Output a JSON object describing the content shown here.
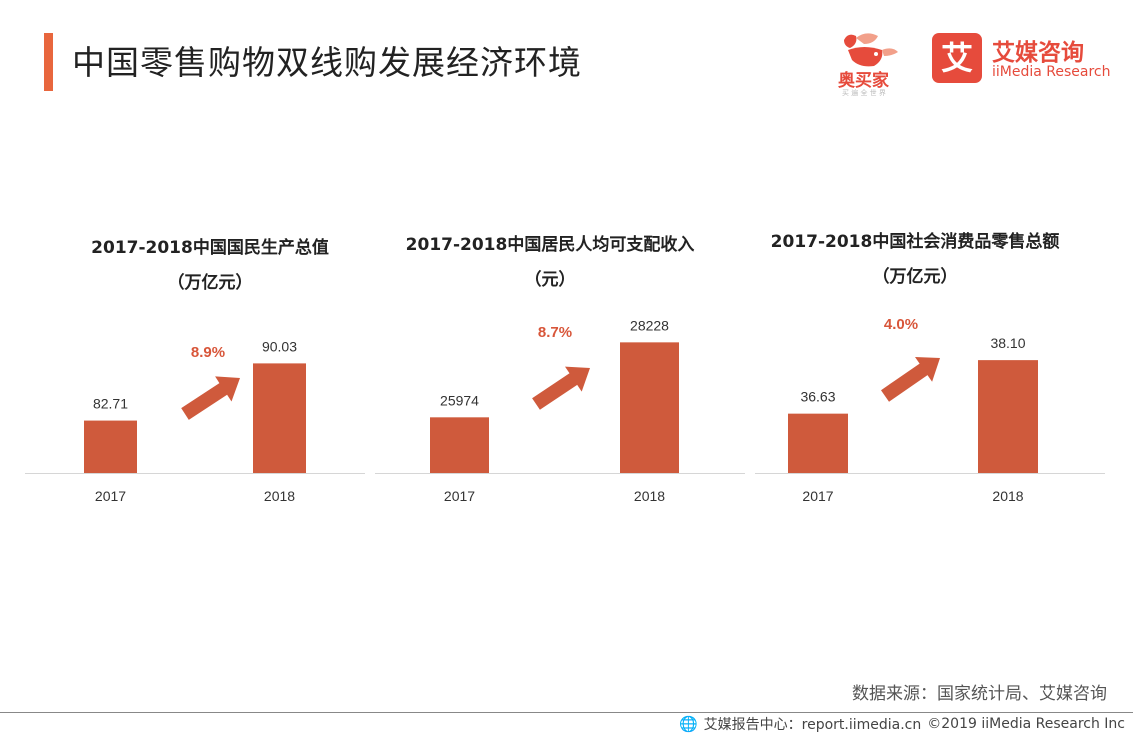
{
  "header": {
    "title": "中国零售购物双线购发展经济环境"
  },
  "logos": {
    "aomaijia": {
      "name": "奥买家",
      "tagline": "买 遍 全 世 界"
    },
    "iimedia": {
      "mark": "艾",
      "cn": "艾媒咨询",
      "en": "iiMedia Research"
    }
  },
  "colors": {
    "accent": "#e8663d",
    "bar": "#cf5a3c",
    "growth": "#d8563a",
    "axis": "#d6d6d6"
  },
  "chart_data": [
    {
      "type": "bar",
      "title": "2017-2018中国国民生产总值",
      "unit": "（万亿元）",
      "categories": [
        "2017",
        "2018"
      ],
      "values": [
        82.71,
        90.03
      ],
      "value_labels": [
        "82.71",
        "90.03"
      ],
      "growth": "8.9%",
      "ylim": [
        76,
        92
      ]
    },
    {
      "type": "bar",
      "title": "2017-2018中国居民人均可支配收入",
      "unit": "（元）",
      "categories": [
        "2017",
        "2018"
      ],
      "values": [
        25974,
        28228
      ],
      "value_labels": [
        "25974",
        "28228"
      ],
      "growth": "8.7%",
      "ylim": [
        24300,
        28900
      ]
    },
    {
      "type": "bar",
      "title": "2017-2018中国社会消费品零售总额",
      "unit": "（万亿元）",
      "categories": [
        "2017",
        "2018"
      ],
      "values": [
        36.63,
        38.1
      ],
      "value_labels": [
        "36.63",
        "38.10"
      ],
      "growth": "4.0%",
      "ylim": [
        35,
        38.9
      ]
    }
  ],
  "source": "数据来源：国家统计局、艾媒咨询",
  "footer": {
    "center": "艾媒报告中心：report.iimedia.cn",
    "copyright": "©2019  iiMedia Research  Inc"
  }
}
